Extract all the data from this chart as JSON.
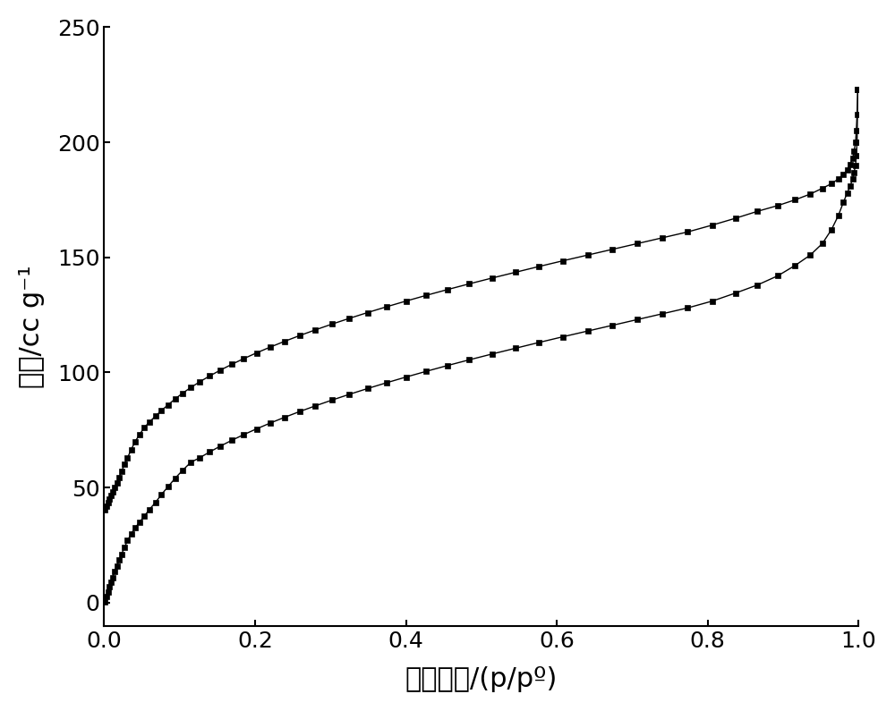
{
  "adsorption_x": [
    0.001,
    0.003,
    0.005,
    0.007,
    0.009,
    0.011,
    0.014,
    0.017,
    0.02,
    0.023,
    0.027,
    0.031,
    0.036,
    0.041,
    0.047,
    0.053,
    0.06,
    0.068,
    0.076,
    0.085,
    0.094,
    0.104,
    0.115,
    0.127,
    0.14,
    0.154,
    0.169,
    0.185,
    0.202,
    0.22,
    0.239,
    0.259,
    0.28,
    0.302,
    0.325,
    0.349,
    0.374,
    0.4,
    0.427,
    0.455,
    0.484,
    0.514,
    0.545,
    0.576,
    0.608,
    0.641,
    0.674,
    0.707,
    0.74,
    0.773,
    0.806,
    0.837,
    0.866,
    0.893,
    0.916,
    0.936,
    0.952,
    0.964,
    0.973,
    0.98,
    0.985,
    0.989,
    0.992,
    0.994,
    0.996,
    0.997,
    0.998,
    0.999
  ],
  "adsorption_y": [
    0.2,
    2.5,
    4.8,
    7.0,
    9.0,
    11.0,
    13.5,
    16.0,
    18.5,
    21.0,
    24.0,
    27.0,
    30.0,
    32.5,
    35.0,
    37.5,
    40.5,
    43.5,
    47.0,
    50.5,
    54.0,
    57.5,
    61.0,
    63.0,
    65.5,
    68.0,
    70.5,
    73.0,
    75.5,
    78.0,
    80.5,
    83.0,
    85.5,
    88.0,
    90.5,
    93.0,
    95.5,
    98.0,
    100.5,
    103.0,
    105.5,
    108.0,
    110.5,
    113.0,
    115.5,
    118.0,
    120.5,
    123.0,
    125.5,
    128.0,
    131.0,
    134.5,
    138.0,
    142.0,
    146.5,
    151.0,
    156.0,
    162.0,
    168.0,
    174.0,
    178.0,
    181.0,
    184.0,
    187.0,
    190.0,
    194.0,
    200.0,
    223.0
  ],
  "desorption_x": [
    0.999,
    0.998,
    0.997,
    0.996,
    0.994,
    0.992,
    0.989,
    0.985,
    0.98,
    0.973,
    0.964,
    0.952,
    0.936,
    0.916,
    0.893,
    0.866,
    0.837,
    0.806,
    0.773,
    0.74,
    0.707,
    0.674,
    0.641,
    0.608,
    0.576,
    0.545,
    0.514,
    0.484,
    0.455,
    0.427,
    0.4,
    0.374,
    0.349,
    0.325,
    0.302,
    0.28,
    0.259,
    0.239,
    0.22,
    0.202,
    0.185,
    0.169,
    0.154,
    0.14,
    0.127,
    0.115,
    0.104,
    0.094,
    0.085,
    0.076,
    0.068,
    0.06,
    0.053,
    0.047,
    0.041,
    0.036,
    0.031,
    0.027,
    0.023,
    0.02,
    0.017,
    0.014,
    0.011,
    0.009,
    0.007,
    0.005,
    0.003,
    0.001
  ],
  "desorption_y": [
    223.0,
    212.0,
    205.0,
    200.0,
    196.0,
    193.0,
    190.5,
    188.0,
    186.0,
    184.0,
    182.0,
    180.0,
    177.5,
    175.0,
    172.5,
    170.0,
    167.0,
    164.0,
    161.0,
    158.5,
    156.0,
    153.5,
    151.0,
    148.5,
    146.0,
    143.5,
    141.0,
    138.5,
    136.0,
    133.5,
    131.0,
    128.5,
    126.0,
    123.5,
    121.0,
    118.5,
    116.0,
    113.5,
    111.0,
    108.5,
    106.0,
    103.5,
    101.0,
    98.5,
    96.0,
    93.5,
    91.0,
    88.5,
    86.0,
    83.5,
    81.0,
    78.5,
    76.0,
    73.0,
    70.0,
    66.5,
    63.0,
    60.0,
    57.0,
    54.5,
    52.0,
    50.0,
    48.0,
    46.5,
    45.0,
    43.5,
    42.0,
    40.5
  ],
  "xlabel": "相对压力/(p/pº)",
  "ylabel": "孔容/cc g⁻¹",
  "xlim": [
    0.0,
    1.0
  ],
  "ylim": [
    -10,
    250
  ],
  "xticks": [
    0.0,
    0.2,
    0.4,
    0.6,
    0.8,
    1.0
  ],
  "yticks": [
    0,
    50,
    100,
    150,
    200,
    250
  ],
  "color": "#000000",
  "marker": "s",
  "markersize": 4,
  "linewidth": 1.0,
  "xlabel_fontsize": 22,
  "ylabel_fontsize": 22,
  "tick_fontsize": 18,
  "background_color": "#ffffff"
}
